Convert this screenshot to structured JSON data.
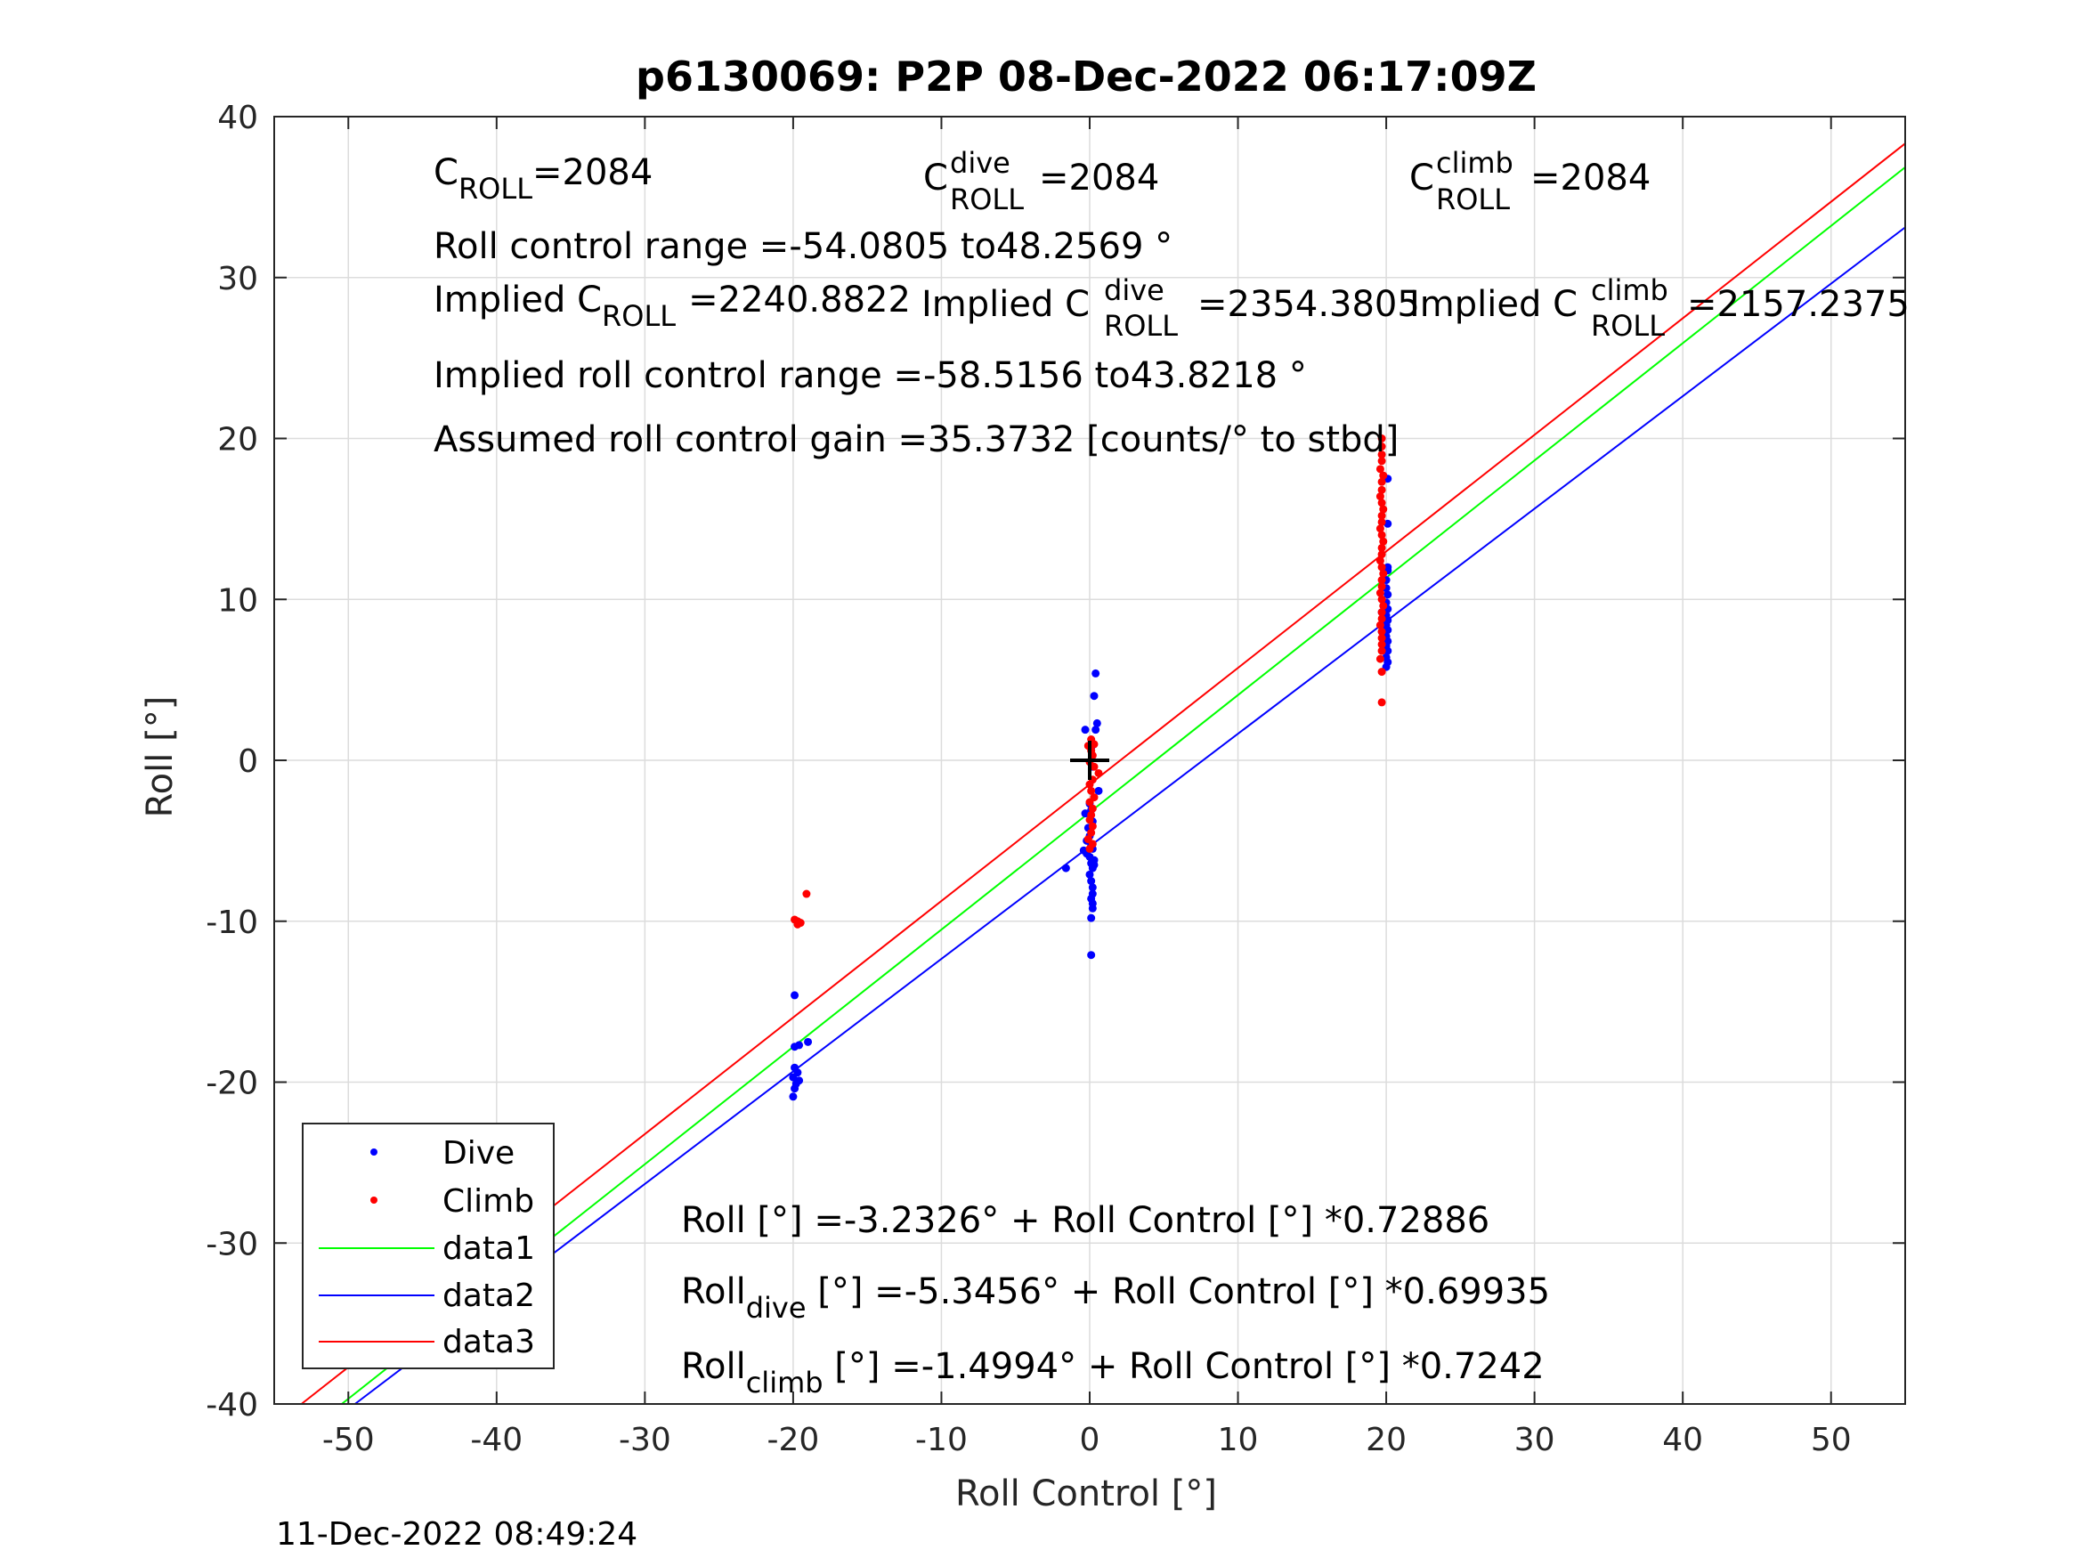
{
  "chart_data": {
    "type": "scatter",
    "title": "p6130069: P2P 08-Dec-2022 06:17:09Z",
    "xlabel": "Roll Control [°]",
    "ylabel": "Roll [°]",
    "xlim": [
      -55,
      55
    ],
    "ylim": [
      -40,
      40
    ],
    "xticks": [
      -50,
      -40,
      -30,
      -20,
      -10,
      0,
      10,
      20,
      30,
      40,
      50
    ],
    "yticks": [
      -40,
      -30,
      -20,
      -10,
      0,
      10,
      20,
      30,
      40
    ],
    "grid": true,
    "legend_placement": "bottom-left",
    "timestamp": "11-Dec-2022 08:49:24",
    "annotations": {
      "c_roll": {
        "main": "C",
        "sub": "ROLL",
        "value": "=2084"
      },
      "c_roll_dive": {
        "main": "C",
        "sup": "dive",
        "sub": "ROLL",
        "value": "=2084"
      },
      "c_roll_climb": {
        "main": "C",
        "sup": "climb",
        "sub": "ROLL",
        "value": "=2084"
      },
      "roll_control_range": "Roll control range =-54.0805 to48.2569 °",
      "implied_c_roll": {
        "main": "Implied C",
        "sub": "ROLL",
        "value": "=2240.8822"
      },
      "implied_c_roll_dive": {
        "main": "Implied C",
        "sup": "dive",
        "sub": "ROLL",
        "value": "=2354.3805"
      },
      "implied_c_roll_climb": {
        "main": "Implied C",
        "sup": "climb",
        "sub": "ROLL",
        "value": "=2157.2375"
      },
      "implied_range": "Implied roll control range =-58.5156 to43.8218 °",
      "gain": "Assumed roll control gain =35.3732 [counts/° to stbd]",
      "fit_all": "Roll [°] =-3.2326° + Roll Control [°] *0.72886",
      "fit_dive": {
        "main": "Roll",
        "sub": "dive",
        "rest": " [°] =-5.3456° + Roll Control [°] *0.69935"
      },
      "fit_climb": {
        "main": "Roll",
        "sub": "climb",
        "rest": " [°] =-1.4994° + Roll Control [°] *0.7242"
      }
    },
    "series": [
      {
        "name": "Dive",
        "kind": "points",
        "color": "#0000ff",
        "points": [
          [
            -19.9,
            -14.6
          ],
          [
            -19.9,
            -17.8
          ],
          [
            -19.6,
            -17.7
          ],
          [
            -19.0,
            -17.5
          ],
          [
            -19.9,
            -19.1
          ],
          [
            -19.7,
            -19.4
          ],
          [
            -20.0,
            -19.7
          ],
          [
            -19.8,
            -20.1
          ],
          [
            -19.9,
            -20.4
          ],
          [
            -20.0,
            -20.9
          ],
          [
            -19.6,
            -19.9
          ],
          [
            -1.6,
            -6.7
          ],
          [
            -0.3,
            1.9
          ],
          [
            0.4,
            5.4
          ],
          [
            0.3,
            4.0
          ],
          [
            0.5,
            2.3
          ],
          [
            0.4,
            1.9
          ],
          [
            0.1,
            0.8
          ],
          [
            0.2,
            -0.4
          ],
          [
            0.6,
            -1.9
          ],
          [
            0.0,
            -2.7
          ],
          [
            0.1,
            -3.1
          ],
          [
            -0.3,
            -3.3
          ],
          [
            0.2,
            -3.8
          ],
          [
            -0.1,
            -4.2
          ],
          [
            0.0,
            -4.7
          ],
          [
            -0.2,
            -5.0
          ],
          [
            0.1,
            -5.3
          ],
          [
            0.2,
            -5.5
          ],
          [
            -0.2,
            -5.8
          ],
          [
            0.0,
            -6.0
          ],
          [
            0.3,
            -6.2
          ],
          [
            0.1,
            -6.4
          ],
          [
            0.2,
            -6.7
          ],
          [
            0.0,
            -7.1
          ],
          [
            0.1,
            -7.5
          ],
          [
            0.2,
            -7.9
          ],
          [
            0.2,
            -8.3
          ],
          [
            0.1,
            -8.6
          ],
          [
            0.2,
            -8.9
          ],
          [
            0.2,
            -9.2
          ],
          [
            0.1,
            -9.8
          ],
          [
            0.1,
            -12.1
          ],
          [
            -0.4,
            -5.6
          ],
          [
            0.3,
            -6.5
          ],
          [
            20.1,
            17.5
          ],
          [
            20.1,
            14.7
          ],
          [
            20.1,
            12.0
          ],
          [
            20.1,
            11.8
          ],
          [
            20.0,
            11.2
          ],
          [
            20.0,
            10.7
          ],
          [
            20.1,
            10.3
          ],
          [
            20.0,
            9.8
          ],
          [
            20.1,
            9.4
          ],
          [
            20.0,
            9.0
          ],
          [
            20.1,
            8.7
          ],
          [
            20.0,
            8.4
          ],
          [
            20.1,
            8.1
          ],
          [
            20.0,
            7.7
          ],
          [
            20.1,
            7.4
          ],
          [
            20.0,
            7.1
          ],
          [
            20.1,
            6.8
          ],
          [
            20.0,
            6.4
          ],
          [
            20.1,
            6.1
          ],
          [
            20.0,
            5.8
          ],
          [
            19.7,
            8.0
          ],
          [
            19.7,
            9.2
          ]
        ]
      },
      {
        "name": "Climb",
        "kind": "points",
        "color": "#ff0000",
        "points": [
          [
            -19.7,
            -10.0
          ],
          [
            -19.5,
            -10.1
          ],
          [
            -19.9,
            -9.9
          ],
          [
            -19.7,
            -10.2
          ],
          [
            -19.1,
            -8.3
          ],
          [
            0.1,
            1.3
          ],
          [
            0.3,
            1.0
          ],
          [
            0.1,
            0.6
          ],
          [
            0.2,
            0.3
          ],
          [
            0.0,
            -0.1
          ],
          [
            0.3,
            -0.4
          ],
          [
            0.6,
            -0.8
          ],
          [
            0.2,
            -1.2
          ],
          [
            0.0,
            -1.5
          ],
          [
            0.1,
            -1.9
          ],
          [
            0.3,
            -2.3
          ],
          [
            0.0,
            -2.6
          ],
          [
            0.2,
            -3.0
          ],
          [
            0.1,
            -3.4
          ],
          [
            0.0,
            -3.7
          ],
          [
            0.2,
            -4.1
          ],
          [
            0.1,
            -4.5
          ],
          [
            -0.1,
            -4.9
          ],
          [
            0.2,
            -5.2
          ],
          [
            0.0,
            -5.5
          ],
          [
            -0.1,
            0.9
          ],
          [
            19.7,
            20.0
          ],
          [
            19.7,
            19.5
          ],
          [
            19.7,
            19.0
          ],
          [
            19.7,
            18.6
          ],
          [
            19.6,
            18.1
          ],
          [
            19.8,
            17.7
          ],
          [
            19.7,
            17.3
          ],
          [
            19.7,
            16.8
          ],
          [
            19.6,
            16.4
          ],
          [
            19.7,
            16.0
          ],
          [
            19.8,
            15.6
          ],
          [
            19.7,
            15.2
          ],
          [
            19.7,
            14.8
          ],
          [
            19.6,
            14.4
          ],
          [
            19.7,
            14.0
          ],
          [
            19.8,
            13.6
          ],
          [
            19.7,
            13.2
          ],
          [
            19.7,
            12.8
          ],
          [
            19.6,
            12.4
          ],
          [
            19.7,
            12.0
          ],
          [
            19.8,
            11.6
          ],
          [
            19.7,
            11.2
          ],
          [
            19.7,
            10.8
          ],
          [
            19.6,
            10.4
          ],
          [
            19.7,
            10.0
          ],
          [
            19.8,
            9.6
          ],
          [
            19.7,
            9.2
          ],
          [
            19.7,
            8.8
          ],
          [
            19.6,
            8.4
          ],
          [
            19.7,
            8.0
          ],
          [
            19.7,
            7.6
          ],
          [
            19.7,
            7.2
          ],
          [
            19.7,
            6.8
          ],
          [
            19.6,
            6.3
          ],
          [
            19.7,
            5.5
          ],
          [
            19.7,
            3.6
          ]
        ]
      },
      {
        "name": "data1",
        "kind": "line",
        "color": "#00ff00",
        "intercept": -3.2326,
        "slope": 0.72886
      },
      {
        "name": "data2",
        "kind": "line",
        "color": "#0000ff",
        "intercept": -5.3456,
        "slope": 0.69935
      },
      {
        "name": "data3",
        "kind": "line",
        "color": "#ff0000",
        "intercept": -1.4994,
        "slope": 0.7242
      }
    ],
    "marker": {
      "x": 0,
      "y": 0,
      "symbol": "plus",
      "color": "#000000"
    }
  }
}
